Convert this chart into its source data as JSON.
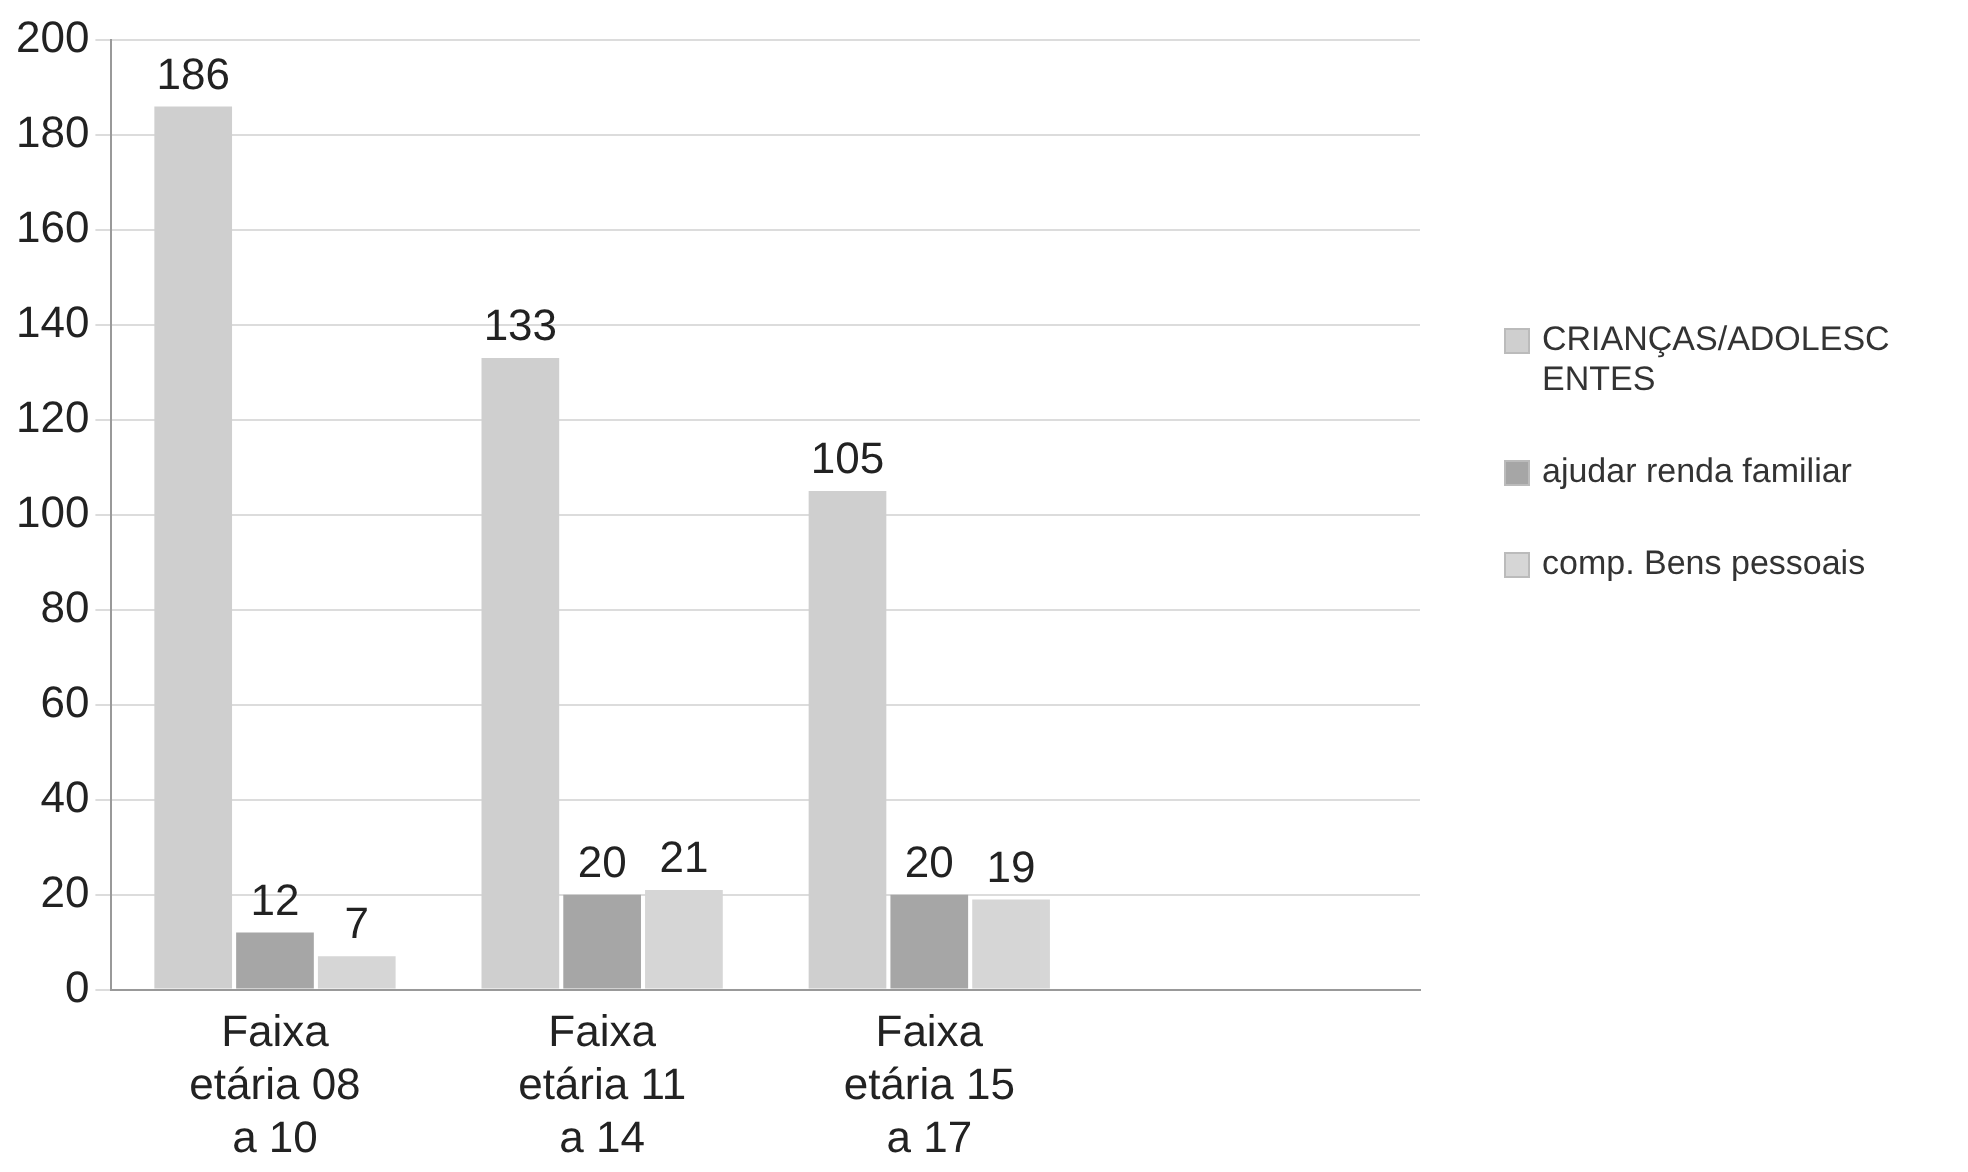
{
  "chart_data": {
    "type": "bar",
    "categories": [
      "Faixa etária 08 a 10",
      "Faixa etária 11 a 14",
      "Faixa etária 15 a 17",
      null
    ],
    "series": [
      {
        "name": "CRIANÇAS/ADOLESCENTES",
        "color": "#cfcfcf",
        "values": [
          186,
          133,
          105,
          null
        ]
      },
      {
        "name": "ajudar renda familiar",
        "color": "#a6a6a6",
        "values": [
          12,
          20,
          20,
          null
        ]
      },
      {
        "name": "comp. Bens pessoais",
        "color": "#d6d6d6",
        "values": [
          7,
          21,
          19,
          null
        ]
      }
    ],
    "ylim": [
      0,
      200
    ],
    "yticks": [
      0,
      20,
      40,
      60,
      80,
      100,
      120,
      140,
      160,
      180,
      200
    ],
    "grid": "y",
    "legend": "right",
    "data_labels": true
  }
}
